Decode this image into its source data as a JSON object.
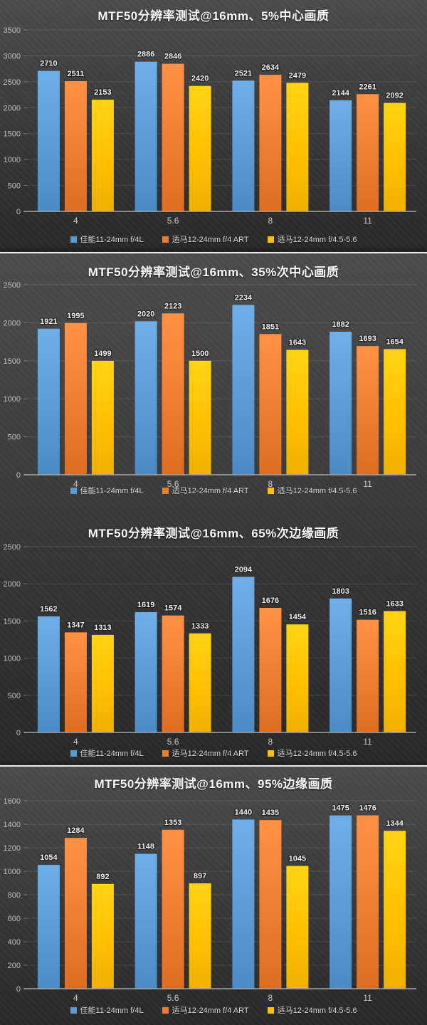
{
  "page": {
    "background_color": "#2c2c2c",
    "separator_color": "#ececec"
  },
  "legend": [
    {
      "label": "佳能11-24mm f/4L",
      "color": "#5B9BD5"
    },
    {
      "label": "适马12-24mm f/4 ART",
      "color": "#ED7D31"
    },
    {
      "label": "适马12-24mm f/4.5-5.6",
      "color": "#FFC000"
    }
  ],
  "chart_data": [
    {
      "type": "bar",
      "title": "MTF50分辨率测试@16mm、5%中心画质",
      "categories": [
        "4",
        "5.6",
        "8",
        "11"
      ],
      "series": [
        {
          "name": "佳能11-24mm f/4L",
          "color": "#5B9BD5",
          "values": [
            2710,
            2886,
            2521,
            2144
          ]
        },
        {
          "name": "适马12-24mm f/4 ART",
          "color": "#ED7D31",
          "values": [
            2511,
            2846,
            2634,
            2261
          ]
        },
        {
          "name": "适马12-24mm f/4.5-5.6",
          "color": "#FFC000",
          "values": [
            2153,
            2420,
            2479,
            2092
          ]
        }
      ],
      "xlabel": "",
      "ylabel": "",
      "ylim": [
        0,
        3500
      ],
      "ytick_step": 500,
      "grid": true,
      "legend_position": "bottom"
    },
    {
      "type": "bar",
      "title": "MTF50分辨率测试@16mm、35%次中心画质",
      "categories": [
        "4",
        "5.6",
        "8",
        "11"
      ],
      "series": [
        {
          "name": "佳能11-24mm f/4L",
          "color": "#5B9BD5",
          "values": [
            1921,
            2020,
            2234,
            1882
          ]
        },
        {
          "name": "适马12-24mm f/4 ART",
          "color": "#ED7D31",
          "values": [
            1995,
            2123,
            1851,
            1693
          ]
        },
        {
          "name": "适马12-24mm f/4.5-5.6",
          "color": "#FFC000",
          "values": [
            1499,
            1500,
            1643,
            1654
          ]
        }
      ],
      "xlabel": "",
      "ylabel": "",
      "ylim": [
        0,
        2500
      ],
      "ytick_step": 500,
      "grid": true,
      "legend_position": "bottom"
    },
    {
      "type": "bar",
      "title": "MTF50分辨率测试@16mm、65%次边缘画质",
      "categories": [
        "4",
        "5.6",
        "8",
        "11"
      ],
      "series": [
        {
          "name": "佳能11-24mm f/4L",
          "color": "#5B9BD5",
          "values": [
            1562,
            1619,
            2094,
            1803
          ]
        },
        {
          "name": "适马12-24mm f/4 ART",
          "color": "#ED7D31",
          "values": [
            1347,
            1574,
            1676,
            1516
          ]
        },
        {
          "name": "适马12-24mm f/4.5-5.6",
          "color": "#FFC000",
          "values": [
            1313,
            1333,
            1454,
            1633
          ]
        }
      ],
      "xlabel": "",
      "ylabel": "",
      "ylim": [
        0,
        2500
      ],
      "ytick_step": 500,
      "grid": true,
      "legend_position": "bottom"
    },
    {
      "type": "bar",
      "title": "MTF50分辨率测试@16mm、95%边缘画质",
      "categories": [
        "4",
        "5.6",
        "8",
        "11"
      ],
      "series": [
        {
          "name": "佳能11-24mm f/4L",
          "color": "#5B9BD5",
          "values": [
            1054,
            1148,
            1440,
            1475
          ]
        },
        {
          "name": "适马12-24mm f/4 ART",
          "color": "#ED7D31",
          "values": [
            1284,
            1353,
            1435,
            1476
          ]
        },
        {
          "name": "适马12-24mm f/4.5-5.6",
          "color": "#FFC000",
          "values": [
            892,
            897,
            1045,
            1344
          ]
        }
      ],
      "xlabel": "",
      "ylabel": "",
      "ylim": [
        0,
        1600
      ],
      "ytick_step": 200,
      "grid": true,
      "legend_position": "bottom"
    }
  ]
}
